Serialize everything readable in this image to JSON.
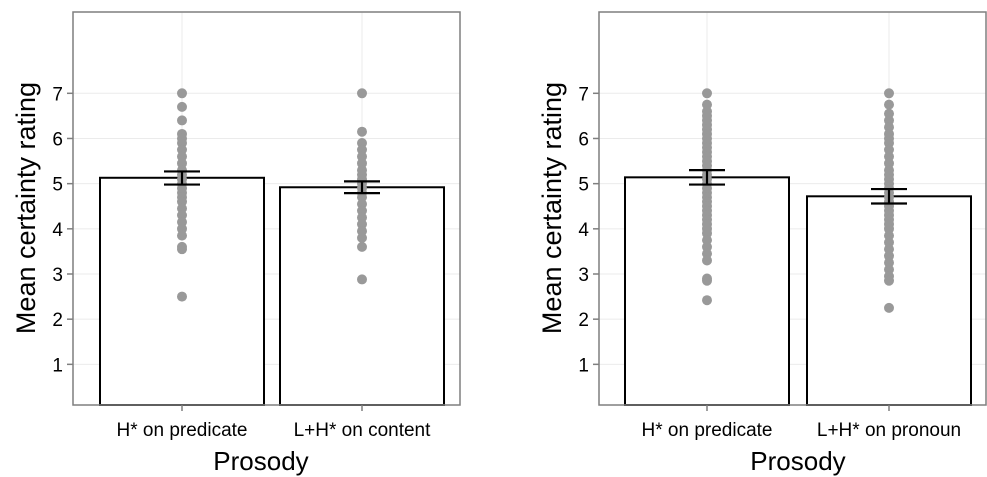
{
  "colors": {
    "panel_bg": "#ffffff",
    "panel_border": "#7f7f7f",
    "gridline": "#ebebeb",
    "bar_fill": "#ffffff",
    "bar_stroke": "#000000",
    "point": "#999999",
    "text": "#000000"
  },
  "chart_data": [
    {
      "type": "bar",
      "xlabel": "Prosody",
      "ylabel": "Mean certainty rating",
      "ylim": [
        0.1,
        8.8
      ],
      "yticks": [
        1,
        2,
        3,
        4,
        5,
        6,
        7
      ],
      "grid": true,
      "categories": [
        "H* on predicate",
        "L+H* on content"
      ],
      "values": [
        5.13,
        4.92
      ],
      "error_bars": [
        [
          4.98,
          5.27
        ],
        [
          4.79,
          5.05
        ]
      ],
      "points": [
        [
          7.0,
          6.7,
          6.4,
          6.1,
          6.0,
          5.9,
          5.75,
          5.6,
          5.45,
          5.3,
          5.2,
          5.1,
          5.0,
          4.9,
          4.8,
          4.7,
          4.6,
          4.45,
          4.3,
          4.15,
          4.0,
          3.85,
          3.6,
          3.55,
          2.5
        ],
        [
          7.0,
          6.15,
          5.9,
          5.75,
          5.6,
          5.45,
          5.3,
          5.2,
          5.1,
          5.0,
          4.9,
          4.8,
          4.7,
          4.55,
          4.4,
          4.25,
          4.1,
          3.95,
          3.8,
          3.6,
          2.88
        ]
      ]
    },
    {
      "type": "bar",
      "xlabel": "Prosody",
      "ylabel": "Mean certainty rating",
      "ylim": [
        0.1,
        8.8
      ],
      "yticks": [
        1,
        2,
        3,
        4,
        5,
        6,
        7
      ],
      "grid": true,
      "categories": [
        "H* on predicate",
        "L+H* on pronoun"
      ],
      "values": [
        5.14,
        4.72
      ],
      "error_bars": [
        [
          4.98,
          5.3
        ],
        [
          4.56,
          4.88
        ]
      ],
      "points": [
        [
          7.0,
          6.75,
          6.6,
          6.5,
          6.4,
          6.3,
          6.2,
          6.1,
          6.0,
          5.9,
          5.8,
          5.7,
          5.6,
          5.5,
          5.4,
          5.3,
          5.2,
          5.1,
          5.0,
          4.9,
          4.8,
          4.7,
          4.6,
          4.5,
          4.4,
          4.3,
          4.2,
          4.1,
          4.0,
          3.9,
          3.75,
          3.6,
          3.45,
          3.3,
          2.9,
          2.85,
          2.42
        ],
        [
          7.0,
          6.75,
          6.55,
          6.4,
          6.25,
          6.1,
          6.0,
          5.9,
          5.75,
          5.6,
          5.45,
          5.3,
          5.2,
          5.1,
          5.0,
          4.9,
          4.8,
          4.7,
          4.6,
          4.5,
          4.4,
          4.3,
          4.2,
          4.1,
          4.0,
          3.85,
          3.7,
          3.55,
          3.4,
          3.25,
          3.1,
          2.95,
          2.85,
          2.25
        ]
      ]
    }
  ]
}
